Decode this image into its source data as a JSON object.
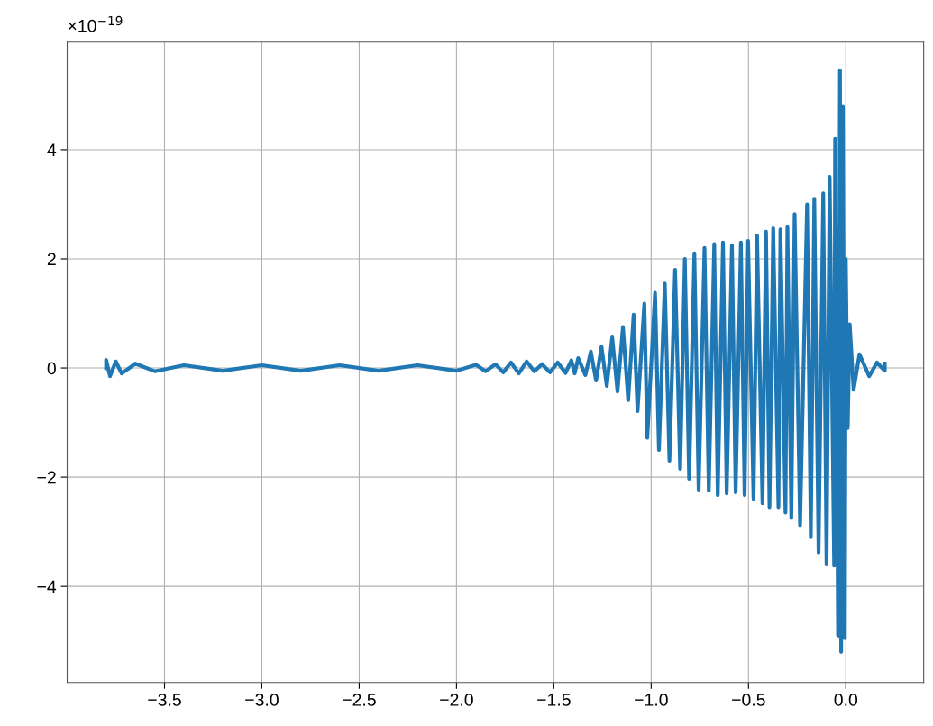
{
  "chart_data": {
    "type": "line",
    "annotations": [
      "×10$^{−19}$"
    ],
    "series": [
      {
        "color": "#1f77b4",
        "x": [
          -3.8,
          -3.8,
          -3.78,
          -3.75,
          -3.72,
          -3.65,
          -3.55,
          -3.4,
          -3.2,
          -3.0,
          -2.8,
          -2.6,
          -2.4,
          -2.2,
          -2.0,
          -1.9,
          -1.85,
          -1.8,
          -1.76,
          -1.72,
          -1.68,
          -1.64,
          -1.6,
          -1.56,
          -1.52,
          -1.48,
          -1.44,
          -1.41,
          -1.393,
          -1.375,
          -1.338,
          -1.31,
          -1.283,
          -1.255,
          -1.228,
          -1.2,
          -1.173,
          -1.145,
          -1.118,
          -1.09,
          -1.07,
          -1.035,
          -1.02,
          -0.98,
          -0.96,
          -0.93,
          -0.906,
          -0.877,
          -0.851,
          -0.827,
          -0.805,
          -0.778,
          -0.756,
          -0.726,
          -0.704,
          -0.676,
          -0.658,
          -0.631,
          -0.612,
          -0.585,
          -0.566,
          -0.539,
          -0.52,
          -0.502,
          -0.474,
          -0.456,
          -0.428,
          -0.41,
          -0.392,
          -0.373,
          -0.346,
          -0.336,
          -0.31,
          -0.3,
          -0.28,
          -0.263,
          -0.235,
          -0.199,
          -0.18,
          -0.162,
          -0.14,
          -0.116,
          -0.099,
          -0.083,
          -0.06,
          -0.055,
          -0.04,
          -0.03,
          -0.024,
          -0.015,
          -0.005,
          0.0,
          0.01,
          0.02,
          0.04,
          0.07,
          0.12,
          0.16,
          0.2,
          0.2
        ],
        "values": [
          0.0,
          0.15,
          -0.15,
          0.12,
          -0.1,
          0.08,
          -0.06,
          0.05,
          -0.05,
          0.05,
          -0.05,
          0.05,
          -0.05,
          0.05,
          -0.05,
          0.06,
          -0.06,
          0.07,
          -0.08,
          0.1,
          -0.1,
          0.12,
          -0.06,
          0.07,
          -0.08,
          0.1,
          -0.09,
          0.14,
          -0.1,
          0.18,
          -0.13,
          0.3,
          -0.23,
          0.39,
          -0.33,
          0.56,
          -0.43,
          0.75,
          -0.59,
          0.98,
          -0.79,
          1.18,
          -1.28,
          1.38,
          -1.5,
          1.55,
          -1.7,
          1.8,
          -1.85,
          2.0,
          -2.03,
          2.1,
          -2.23,
          2.2,
          -2.25,
          2.27,
          -2.33,
          2.3,
          -2.3,
          2.25,
          -2.28,
          2.3,
          -2.33,
          2.33,
          -2.4,
          2.43,
          -2.48,
          2.5,
          -2.55,
          2.56,
          -2.55,
          2.54,
          -2.65,
          2.58,
          -2.75,
          2.82,
          -2.88,
          3.0,
          -3.1,
          3.1,
          -3.38,
          3.2,
          -3.6,
          3.5,
          -3.62,
          4.2,
          -4.9,
          5.45,
          -5.2,
          4.8,
          -4.95,
          2.0,
          -1.1,
          0.8,
          -0.4,
          0.25,
          -0.15,
          0.1,
          -0.05,
          0.08
        ]
      }
    ],
    "xlim": [
      -4.0,
      0.4
    ],
    "xticks": [
      {
        "value": -3.5,
        "label": "−3.5"
      },
      {
        "value": -3.0,
        "label": "−3.0"
      },
      {
        "value": -2.5,
        "label": "−2.5"
      },
      {
        "value": -2.0,
        "label": "−2.0"
      },
      {
        "value": -1.5,
        "label": "−1.5"
      },
      {
        "value": -1.0,
        "label": "−1.0"
      },
      {
        "value": -0.5,
        "label": "−0.5"
      },
      {
        "value": 0.0,
        "label": "0.0"
      }
    ],
    "ylim": [
      -5.76,
      5.97
    ],
    "yticks": [
      {
        "value": -4,
        "label": "−4"
      },
      {
        "value": -2,
        "label": "−2"
      },
      0,
      2,
      4
    ],
    "grid": true
  }
}
